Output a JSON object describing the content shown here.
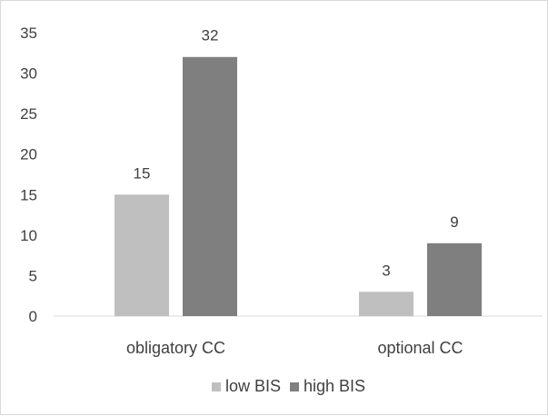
{
  "chart_data": {
    "type": "bar",
    "title": "",
    "xlabel": "",
    "ylabel": "",
    "categories": [
      "obligatory CC",
      "optional CC"
    ],
    "series": [
      {
        "name": "low BIS",
        "values": [
          15,
          3
        ],
        "color": "#bfbfbf"
      },
      {
        "name": "high BIS",
        "values": [
          32,
          9
        ],
        "color": "#7f7f7f"
      }
    ],
    "ylim": [
      0,
      35
    ],
    "yticks": [
      0,
      5,
      10,
      15,
      20,
      25,
      30,
      35
    ],
    "grid": false,
    "data_labels": true,
    "legend_position": "bottom"
  }
}
